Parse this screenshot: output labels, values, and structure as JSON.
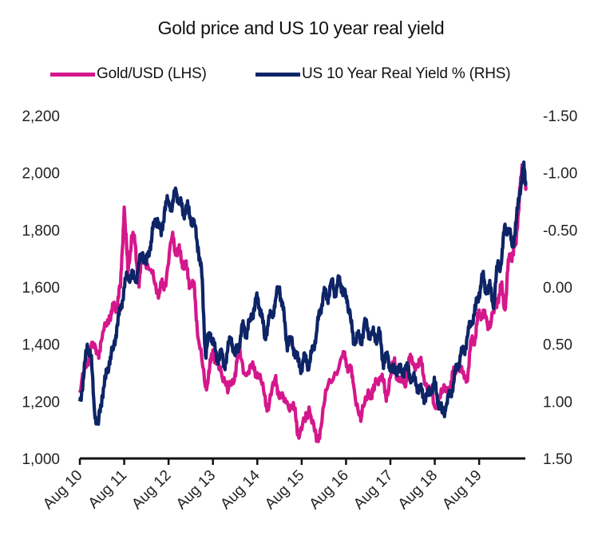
{
  "chart_data": {
    "type": "line",
    "title": "Gold price and US 10 year real yield",
    "colors": {
      "gold": "#D5178C",
      "yield": "#0D2466"
    },
    "x_tick_labels": [
      "Aug 10",
      "Aug 11",
      "Aug 12",
      "Aug 13",
      "Aug 14",
      "Aug 15",
      "Aug 16",
      "Aug 17",
      "Aug 18",
      "Aug 19"
    ],
    "y_left": {
      "ticks": [
        "1,000",
        "1,200",
        "1,400",
        "1,600",
        "1,800",
        "2,000",
        "2,200"
      ],
      "range": [
        1000,
        2200
      ]
    },
    "y_right": {
      "ticks": [
        "1.50",
        "1.00",
        "0.50",
        "0.00",
        "-0.50",
        "-1.00",
        "-1.50"
      ],
      "range": [
        1.5,
        -1.5
      ],
      "inverted": true
    },
    "series": [
      {
        "name": "Gold/USD (LHS)",
        "axis": "left",
        "points": [
          [
            "Aug 10",
            1230
          ],
          [
            "Oct 10",
            1340
          ],
          [
            "Nov 10",
            1390
          ],
          [
            "Jan 11",
            1370
          ],
          [
            "Feb 11",
            1420
          ],
          [
            "Apr 11",
            1500
          ],
          [
            "May 11",
            1520
          ],
          [
            "Jun 11",
            1540
          ],
          [
            "Jul 11",
            1600
          ],
          [
            "Aug 11",
            1880
          ],
          [
            "Sep 11",
            1650
          ],
          [
            "Oct 11",
            1780
          ],
          [
            "Nov 11",
            1750
          ],
          [
            "Dec 11",
            1600
          ],
          [
            "Jan 12",
            1720
          ],
          [
            "Mar 12",
            1660
          ],
          [
            "May 12",
            1580
          ],
          [
            "Jun 12",
            1600
          ],
          [
            "Jul 12",
            1610
          ],
          [
            "Sep 12",
            1780
          ],
          [
            "Oct 12",
            1720
          ],
          [
            "Nov 12",
            1720
          ],
          [
            "Dec 12",
            1680
          ],
          [
            "Jan 13",
            1660
          ],
          [
            "Feb 13",
            1600
          ],
          [
            "Mar 13",
            1600
          ],
          [
            "Apr 13",
            1420
          ],
          [
            "Jun 13",
            1250
          ],
          [
            "Jul 13",
            1300
          ],
          [
            "Aug 13",
            1380
          ],
          [
            "Sep 13",
            1330
          ],
          [
            "Oct 13",
            1320
          ],
          [
            "Dec 13",
            1230
          ],
          [
            "Feb 14",
            1300
          ],
          [
            "Mar 14",
            1380
          ],
          [
            "May 14",
            1290
          ],
          [
            "Jul 14",
            1320
          ],
          [
            "Aug 14",
            1300
          ],
          [
            "Oct 14",
            1220
          ],
          [
            "Nov 14",
            1170
          ],
          [
            "Jan 15",
            1290
          ],
          [
            "Feb 15",
            1210
          ],
          [
            "Apr 15",
            1200
          ],
          [
            "Jun 15",
            1170
          ],
          [
            "Jul 15",
            1090
          ],
          [
            "Sep 15",
            1130
          ],
          [
            "Oct 15",
            1180
          ],
          [
            "Dec 15",
            1060
          ],
          [
            "Jan 16",
            1100
          ],
          [
            "Mar 16",
            1250
          ],
          [
            "Jul 16",
            1360
          ],
          [
            "Aug 16",
            1340
          ],
          [
            "Sep 16",
            1320
          ],
          [
            "Oct 16",
            1260
          ],
          [
            "Dec 16",
            1130
          ],
          [
            "Feb 17",
            1240
          ],
          [
            "Mar 17",
            1210
          ],
          [
            "Apr 17",
            1280
          ],
          [
            "Jun 17",
            1270
          ],
          [
            "Jul 17",
            1220
          ],
          [
            "Sep 17",
            1340
          ],
          [
            "Oct 17",
            1280
          ],
          [
            "Dec 17",
            1250
          ],
          [
            "Jan 18",
            1350
          ],
          [
            "Feb 18",
            1330
          ],
          [
            "Apr 18",
            1340
          ],
          [
            "May 18",
            1290
          ],
          [
            "Jul 18",
            1230
          ],
          [
            "Aug 18",
            1180
          ],
          [
            "Oct 18",
            1230
          ],
          [
            "Dec 18",
            1250
          ],
          [
            "Jan 19",
            1290
          ],
          [
            "Feb 19",
            1330
          ],
          [
            "Apr 19",
            1280
          ],
          [
            "May 19",
            1300
          ],
          [
            "Jun 19",
            1420
          ],
          [
            "Jul 19",
            1420
          ],
          [
            "Aug 19",
            1520
          ],
          [
            "Sep 19",
            1500
          ],
          [
            "Oct 19",
            1490
          ],
          [
            "Nov 19",
            1460
          ],
          [
            "Jan 20",
            1560
          ],
          [
            "Feb 20",
            1600
          ],
          [
            "Mar 20",
            1520
          ],
          [
            "Apr 20",
            1700
          ],
          [
            "May 20",
            1720
          ],
          [
            "Jun 20",
            1750
          ],
          [
            "Jul 20",
            1950
          ],
          [
            "Aug 20",
            2030
          ],
          [
            "Aug 20 end",
            1950
          ]
        ]
      },
      {
        "name": "US 10 Year Real Yield % (RHS)",
        "axis": "right",
        "points": [
          [
            "Aug 10",
            1.0
          ],
          [
            "Sep 10",
            0.8
          ],
          [
            "Oct 10",
            0.5
          ],
          [
            "Nov 10",
            0.6
          ],
          [
            "Dec 10",
            1.1
          ],
          [
            "Jan 11",
            1.2
          ],
          [
            "Feb 11",
            0.95
          ],
          [
            "Mar 11",
            0.8
          ],
          [
            "Apr 11",
            0.65
          ],
          [
            "May 11",
            0.55
          ],
          [
            "Jun 11",
            0.35
          ],
          [
            "Jul 11",
            0.2
          ],
          [
            "Aug 11",
            0.0
          ],
          [
            "Sep 11",
            -0.1
          ],
          [
            "Oct 11",
            -0.1
          ],
          [
            "Nov 11",
            -0.05
          ],
          [
            "Dec 11",
            -0.2
          ],
          [
            "Jan 12",
            -0.3
          ],
          [
            "Feb 12",
            -0.2
          ],
          [
            "Mar 12",
            -0.35
          ],
          [
            "Apr 12",
            -0.55
          ],
          [
            "May 12",
            -0.6
          ],
          [
            "Jun 12",
            -0.45
          ],
          [
            "Jul 12",
            -0.7
          ],
          [
            "Aug 12",
            -0.75
          ],
          [
            "Sep 12",
            -0.7
          ],
          [
            "Oct 12",
            -0.85
          ],
          [
            "Nov 12",
            -0.75
          ],
          [
            "Dec 12",
            -0.65
          ],
          [
            "Jan 13",
            -0.7
          ],
          [
            "Feb 13",
            -0.6
          ],
          [
            "Mar 13",
            -0.55
          ],
          [
            "Apr 13",
            -0.35
          ],
          [
            "May 13",
            -0.1
          ],
          [
            "Jun 13",
            0.6
          ],
          [
            "Jul 13",
            0.4
          ],
          [
            "Aug 13",
            0.45
          ],
          [
            "Sep 13",
            0.65
          ],
          [
            "Oct 13",
            0.55
          ],
          [
            "Nov 13",
            0.7
          ],
          [
            "Dec 13",
            0.55
          ],
          [
            "Jan 14",
            0.45
          ],
          [
            "Feb 14",
            0.6
          ],
          [
            "Mar 14",
            0.5
          ],
          [
            "Apr 14",
            0.35
          ],
          [
            "May 14",
            0.4
          ],
          [
            "Jun 14",
            0.3
          ],
          [
            "Jul 14",
            0.2
          ],
          [
            "Aug 14",
            0.1
          ],
          [
            "Sep 14",
            0.2
          ],
          [
            "Oct 14",
            0.45
          ],
          [
            "Nov 14",
            0.3
          ],
          [
            "Dec 14",
            0.25
          ],
          [
            "Jan 15",
            0.1
          ],
          [
            "Feb 15",
            0.0
          ],
          [
            "Mar 15",
            0.2
          ],
          [
            "Apr 15",
            0.5
          ],
          [
            "May 15",
            0.45
          ],
          [
            "Jun 15",
            0.55
          ],
          [
            "Jul 15",
            0.65
          ],
          [
            "Aug 15",
            0.7
          ],
          [
            "Sep 15",
            0.6
          ],
          [
            "Oct 15",
            0.7
          ],
          [
            "Nov 15",
            0.55
          ],
          [
            "Dec 15",
            0.4
          ],
          [
            "Jan 16",
            0.2
          ],
          [
            "Feb 16",
            0.05
          ],
          [
            "Mar 16",
            0.1
          ],
          [
            "Apr 16",
            -0.05
          ],
          [
            "May 16",
            0.05
          ],
          [
            "Jun 16",
            -0.05
          ],
          [
            "Jul 16",
            0.0
          ],
          [
            "Aug 16",
            0.1
          ],
          [
            "Sep 16",
            0.2
          ],
          [
            "Oct 16",
            0.5
          ],
          [
            "Nov 16",
            0.4
          ],
          [
            "Dec 16",
            0.5
          ],
          [
            "Jan 17",
            0.3
          ],
          [
            "Feb 17",
            0.4
          ],
          [
            "Mar 17",
            0.4
          ],
          [
            "Apr 17",
            0.45
          ],
          [
            "May 17",
            0.4
          ],
          [
            "Jun 17",
            0.65
          ],
          [
            "Jul 17",
            0.6
          ],
          [
            "Aug 17",
            0.7
          ],
          [
            "Sep 17",
            0.75
          ],
          [
            "Oct 17",
            0.7
          ],
          [
            "Nov 17",
            0.75
          ],
          [
            "Dec 17",
            0.7
          ],
          [
            "Jan 18",
            0.75
          ],
          [
            "Feb 18",
            0.8
          ],
          [
            "Mar 18",
            0.85
          ],
          [
            "Apr 18",
            0.9
          ],
          [
            "May 18",
            0.95
          ],
          [
            "Jun 18",
            0.95
          ],
          [
            "Jul 18",
            0.9
          ],
          [
            "Aug 18",
            0.85
          ],
          [
            "Sep 18",
            1.0
          ],
          [
            "Oct 18",
            1.1
          ],
          [
            "Nov 18",
            1.05
          ],
          [
            "Dec 18",
            0.95
          ],
          [
            "Jan 19",
            0.85
          ],
          [
            "Feb 19",
            0.7
          ],
          [
            "Mar 19",
            0.6
          ],
          [
            "Apr 19",
            0.55
          ],
          [
            "May 19",
            0.4
          ],
          [
            "Jun 19",
            0.3
          ],
          [
            "Jul 19",
            0.2
          ],
          [
            "Aug 19",
            0.05
          ],
          [
            "Sep 19",
            -0.1
          ],
          [
            "Oct 19",
            0.05
          ],
          [
            "Nov 19",
            0.0
          ],
          [
            "Dec 19",
            0.15
          ],
          [
            "Jan 20",
            -0.2
          ],
          [
            "Feb 20",
            -0.2
          ],
          [
            "Mar 20",
            -0.55
          ],
          [
            "Apr 20",
            -0.5
          ],
          [
            "May 20",
            -0.35
          ],
          [
            "Jun 20",
            -0.55
          ],
          [
            "Jul 20",
            -0.85
          ],
          [
            "Aug 20",
            -1.05
          ],
          [
            "Aug 20 end",
            -0.9
          ]
        ]
      }
    ],
    "grid": false,
    "legend_position": "top"
  }
}
